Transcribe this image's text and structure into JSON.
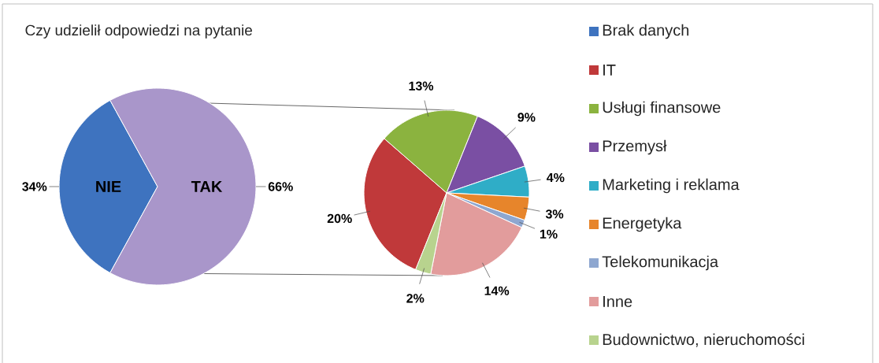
{
  "chart_data": [
    {
      "type": "pie",
      "title": "Czy udzielił odpowiedzi na pytanie",
      "categories": [
        "Brak danych",
        null
      ],
      "values": [
        34,
        66
      ],
      "value_labels": [
        "34%",
        "66%"
      ],
      "colors": [
        "#3e73bf",
        "#a996ca"
      ],
      "annotations": [
        "NIE",
        "TAK"
      ],
      "legend": "right"
    },
    {
      "type": "pie",
      "categories": [
        "IT",
        "Usługi finansowe",
        "Przemysł",
        "Marketing i reklama",
        "Energetyka",
        "Telekomunikacja",
        "Inne",
        "Budownictwo, nieruchomości"
      ],
      "values": [
        20,
        13,
        9,
        4,
        3,
        1,
        14,
        2
      ],
      "value_labels": [
        "20%",
        "13%",
        "9%",
        "4%",
        "3%",
        "1%",
        "14%",
        "2%"
      ],
      "colors": [
        "#c0393a",
        "#8bb33f",
        "#7a4fa3",
        "#2fadc7",
        "#e7852b",
        "#8ea7d0",
        "#e29c9c",
        "#b8d38e"
      ],
      "legend": "right"
    }
  ]
}
